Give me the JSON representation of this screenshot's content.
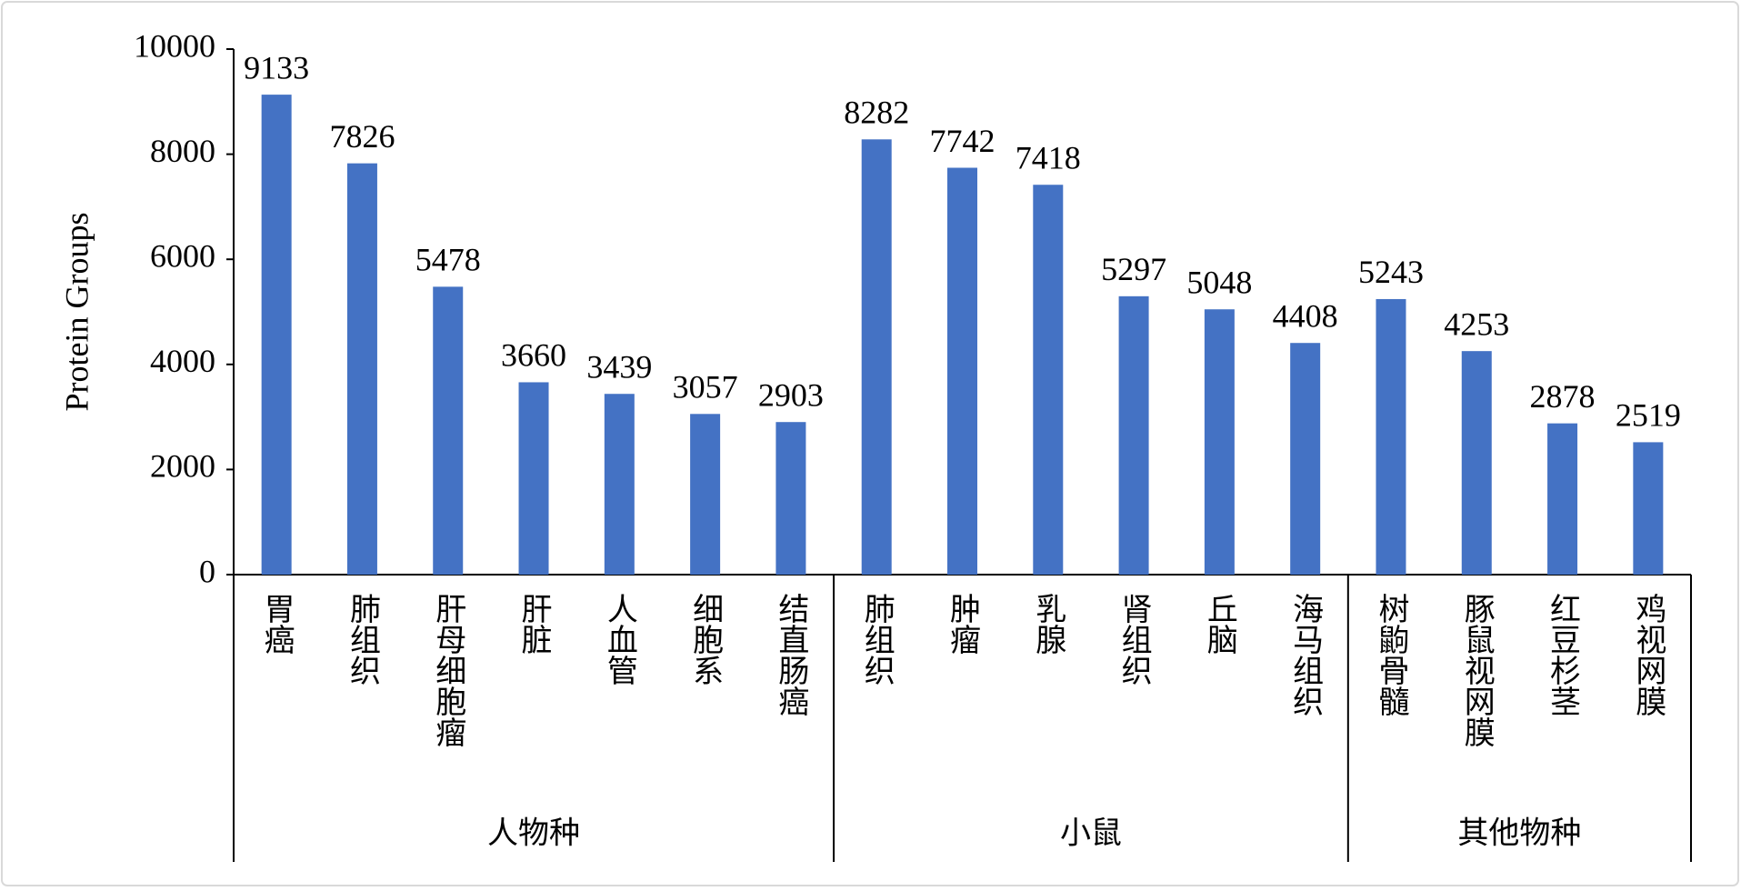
{
  "chart_data": {
    "type": "bar",
    "y_label": "Protein Groups",
    "categories": [
      "胃癌",
      "肺组织",
      "肝母细胞瘤",
      "肝脏",
      "人血管",
      "细胞系",
      "结直肠癌",
      "肺组织",
      "肿瘤",
      "乳腺",
      "肾组织",
      "丘脑",
      "海马组织",
      "树鼩骨髓",
      "豚鼠视网膜",
      "红豆杉茎",
      "鸡视网膜"
    ],
    "category_groups": [
      "人物种",
      "人物种",
      "人物种",
      "人物种",
      "人物种",
      "人物种",
      "人物种",
      "小鼠",
      "小鼠",
      "小鼠",
      "小鼠",
      "小鼠",
      "小鼠",
      "其他物种",
      "其他物种",
      "其他物种",
      "其他物种"
    ],
    "values": [
      9133,
      7826,
      5478,
      3660,
      3439,
      3057,
      2903,
      8282,
      7742,
      7418,
      5297,
      5048,
      4408,
      5243,
      4253,
      2878,
      2519
    ],
    "color": "#4472c4",
    "ylim": [
      0,
      10000
    ],
    "yticks": [
      0,
      2000,
      4000,
      6000,
      8000,
      10000
    ],
    "grid": false
  }
}
